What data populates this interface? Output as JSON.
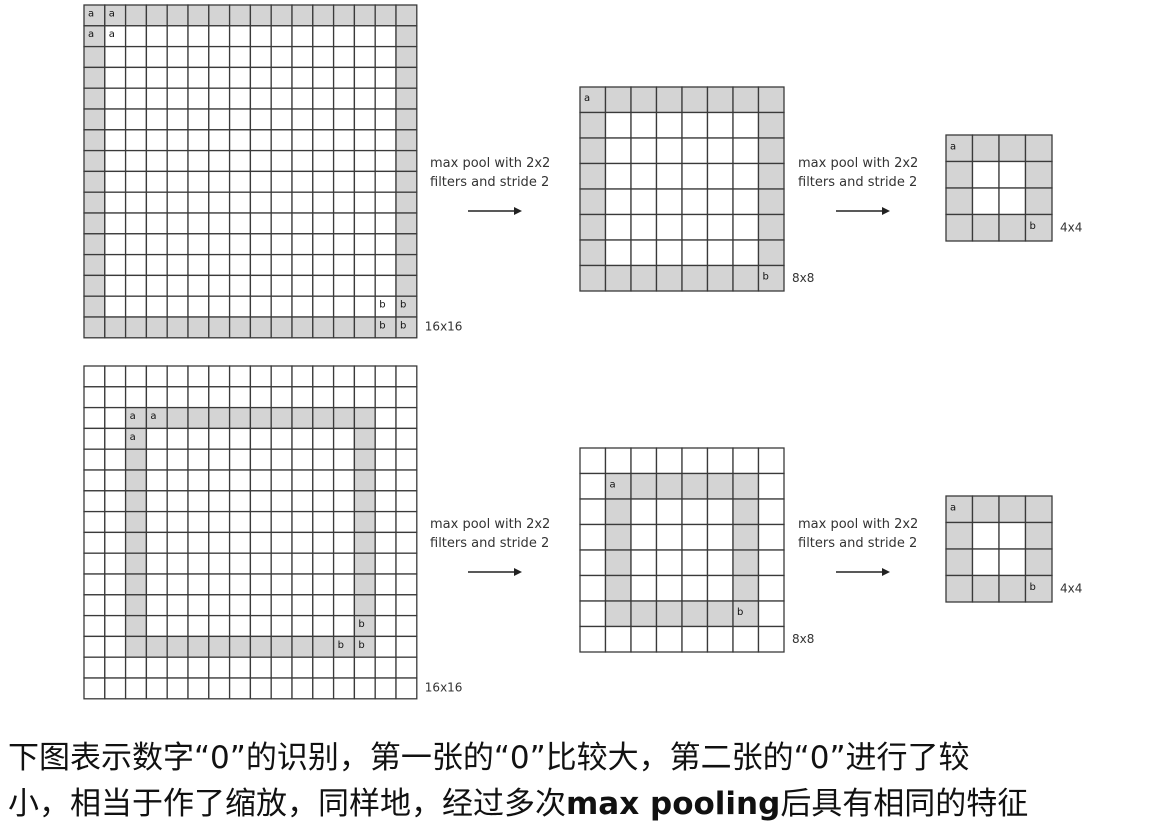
{
  "colors": {
    "fill": "#d4d4d4",
    "empty": "#ffffff",
    "line": "#3a3a3a",
    "text": "#111111"
  },
  "arrow_label": [
    "max pool with 2x2",
    "filters and stride 2"
  ],
  "rows": [
    {
      "name": "large-zero",
      "grids": [
        {
          "size_label": "16x16",
          "ring": 0,
          "markers": [
            {
              "r": 0,
              "c": 0,
              "t": "a"
            },
            {
              "r": 0,
              "c": 1,
              "t": "a"
            },
            {
              "r": 1,
              "c": 0,
              "t": "a"
            },
            {
              "r": 1,
              "c": 1,
              "t": "a"
            },
            {
              "r": 14,
              "c": 14,
              "t": "b"
            },
            {
              "r": 14,
              "c": 15,
              "t": "b"
            },
            {
              "r": 15,
              "c": 14,
              "t": "b"
            },
            {
              "r": 15,
              "c": 15,
              "t": "b"
            }
          ]
        },
        {
          "size_label": "8x8",
          "ring": 0,
          "markers": [
            {
              "r": 0,
              "c": 0,
              "t": "a"
            },
            {
              "r": 7,
              "c": 7,
              "t": "b"
            }
          ]
        },
        {
          "size_label": "4x4",
          "ring": 0,
          "markers": [
            {
              "r": 0,
              "c": 0,
              "t": "a"
            },
            {
              "r": 3,
              "c": 3,
              "t": "b"
            }
          ]
        }
      ]
    },
    {
      "name": "small-zero",
      "grids": [
        {
          "size_label": "16x16",
          "ring": 2,
          "markers": [
            {
              "r": 2,
              "c": 2,
              "t": "a"
            },
            {
              "r": 2,
              "c": 3,
              "t": "a"
            },
            {
              "r": 3,
              "c": 2,
              "t": "a"
            },
            {
              "r": 12,
              "c": 13,
              "t": "b"
            },
            {
              "r": 13,
              "c": 12,
              "t": "b"
            },
            {
              "r": 13,
              "c": 13,
              "t": "b"
            }
          ]
        },
        {
          "size_label": "8x8",
          "ring": 1,
          "markers": [
            {
              "r": 1,
              "c": 1,
              "t": "a"
            },
            {
              "r": 6,
              "c": 6,
              "t": "b"
            }
          ]
        },
        {
          "size_label": "4x4",
          "ring": 0,
          "markers": [
            {
              "r": 0,
              "c": 0,
              "t": "a"
            },
            {
              "r": 3,
              "c": 3,
              "t": "b"
            }
          ]
        }
      ]
    }
  ],
  "caption": {
    "line1": "下图表示数字“0”的识别，第一张的“0”比较大，第二张的“0”进行了较",
    "line2_pre": "小，相当于作了缩放，同样地，经过多次",
    "line2_bold": "max pooling",
    "line2_post": "后具有相同的特征"
  }
}
